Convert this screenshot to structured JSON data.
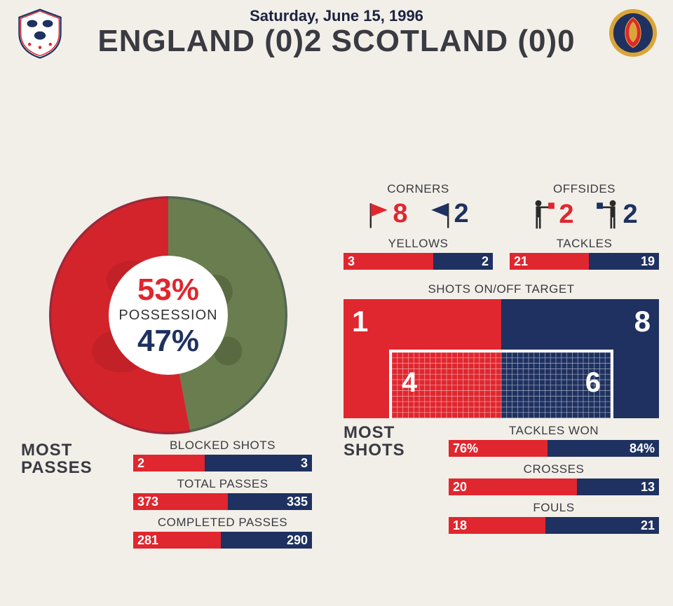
{
  "colors": {
    "red": "#e0262e",
    "blue": "#1e3160",
    "bg": "#f2efe8",
    "text": "#3a3a42",
    "darkred": "#b01e25",
    "scot_green": "#6a7d4e",
    "scot_gold": "#d9a53a"
  },
  "header": {
    "date": "Saturday, June 15, 1996",
    "scoreline": "ENGLAND (0)2 SCOTLAND (0)0"
  },
  "possession": {
    "label": "POSSESSION",
    "england_pct": 53,
    "scotland_pct": 47,
    "england_text": "53%",
    "scotland_text": "47%"
  },
  "left": {
    "title_line1": "MOST",
    "title_line2": "PASSES",
    "bars": [
      {
        "label": "BLOCKED SHOTS",
        "a": "2",
        "b": "3",
        "a_w": 40,
        "b_w": 60
      },
      {
        "label": "TOTAL PASSES",
        "a": "373",
        "b": "335",
        "a_w": 53,
        "b_w": 47
      },
      {
        "label": "COMPLETED PASSES",
        "a": "281",
        "b": "290",
        "a_w": 49,
        "b_w": 51
      }
    ]
  },
  "right": {
    "corners": {
      "label": "CORNERS",
      "a": "8",
      "b": "2"
    },
    "offsides": {
      "label": "OFFSIDES",
      "a": "2",
      "b": "2"
    },
    "yellows": {
      "label": "YELLOWS",
      "a": "3",
      "b": "2",
      "a_w": 60,
      "b_w": 40
    },
    "tackles": {
      "label": "TACKLES",
      "a": "21",
      "b": "19",
      "a_w": 53,
      "b_w": 47
    },
    "shots": {
      "label": "SHOTS ON/OFF TARGET",
      "off_a": "1",
      "off_b": "8",
      "on_a": "4",
      "on_b": "6"
    },
    "most_shots_line1": "MOST",
    "most_shots_line2": "SHOTS",
    "bars": [
      {
        "label": "TACKLES WON",
        "a": "76%",
        "b": "84%",
        "a_w": 47,
        "b_w": 53
      },
      {
        "label": "CROSSES",
        "a": "20",
        "b": "13",
        "a_w": 61,
        "b_w": 39
      },
      {
        "label": "FOULS",
        "a": "18",
        "b": "21",
        "a_w": 46,
        "b_w": 54
      }
    ]
  }
}
